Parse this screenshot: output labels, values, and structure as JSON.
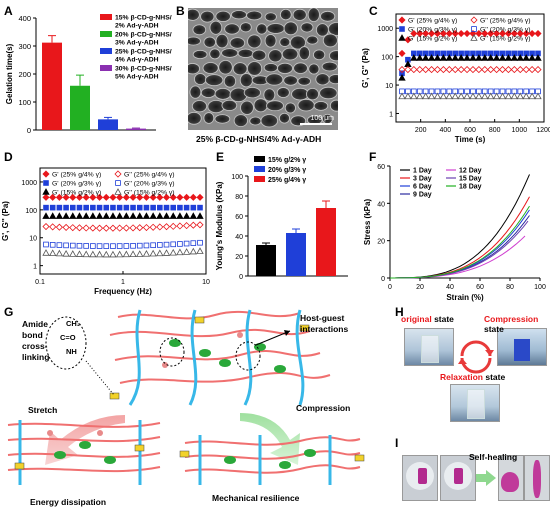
{
  "panels": {
    "A": "A",
    "B": "B",
    "C": "C",
    "D": "D",
    "E": "E",
    "F": "F",
    "G": "G",
    "H": "H",
    "I": "I"
  },
  "chart_data": [
    {
      "id": "A",
      "type": "bar",
      "ylabel": "Gelation time(s)",
      "ylim": [
        0,
        400
      ],
      "yticks": [
        "0",
        "100",
        "200",
        "300",
        "400"
      ],
      "categories": [
        "15% β-CD-g-NHS/ 2% Ad-γ-ADH",
        "20% β-CD-g-NHS/ 3% Ad-γ-ADH",
        "25% β-CD-g-NHS/ 4% Ad-γ-ADH",
        "30% β-CD-g-NHS/ 5% Ad-γ-ADH"
      ],
      "values": [
        312,
        158,
        38,
        5
      ],
      "errors": [
        25,
        38,
        7,
        2
      ],
      "colors": [
        "#e8171b",
        "#22b022",
        "#1f3fd8",
        "#8a2fb0"
      ]
    },
    {
      "id": "C",
      "type": "scatter",
      "ylabel": "G', G'' (Pa)",
      "xlabel": "Time (s)",
      "xlim": [
        0,
        1200
      ],
      "xticks": [
        "200",
        "400",
        "600",
        "800",
        "1000",
        "1200"
      ],
      "yticks": [
        "1",
        "10",
        "100",
        "1000"
      ],
      "yscale": "log",
      "series": [
        {
          "name": "G' (25% g/4% γ)",
          "value": 650,
          "color": "#e8171b",
          "marker": "diamond",
          "filled": true
        },
        {
          "name": "G' (20% g/3% γ)",
          "value": 130,
          "color": "#1f3fd8",
          "marker": "square",
          "filled": true
        },
        {
          "name": "G' (15% g/2% γ)",
          "value": 90,
          "color": "#000000",
          "marker": "triangle",
          "filled": true
        },
        {
          "name": "G'' (25% g/4% γ)",
          "value": 35,
          "color": "#e8171b",
          "marker": "diamond",
          "filled": false
        },
        {
          "name": "G'' (20% g/3% γ)",
          "value": 6,
          "color": "#1f3fd8",
          "marker": "square",
          "filled": false
        },
        {
          "name": "G'' (15% g/2% γ)",
          "value": 4,
          "color": "#555555",
          "marker": "triangle",
          "filled": false
        }
      ]
    },
    {
      "id": "D",
      "type": "scatter",
      "ylabel": "G', G'' (Pa)",
      "xlabel": "Frequency (Hz)",
      "xscale": "log",
      "xticks": [
        "0.1",
        "1",
        "10"
      ],
      "yticks": [
        "1",
        "10",
        "100",
        "1000"
      ],
      "yscale": "log",
      "series": [
        {
          "name": "G' (25% g/4% γ)",
          "value": 280,
          "color": "#e8171b",
          "marker": "diamond",
          "filled": true
        },
        {
          "name": "G' (20% g/3% γ)",
          "value": 120,
          "color": "#1f3fd8",
          "marker": "square",
          "filled": true
        },
        {
          "name": "G' (15% g/2% γ)",
          "value": 60,
          "color": "#000000",
          "marker": "triangle",
          "filled": true
        },
        {
          "name": "G'' (25% g/4% γ)",
          "value": 22,
          "color": "#e8171b",
          "marker": "diamond",
          "filled": false
        },
        {
          "name": "G'' (20% g/3% γ)",
          "value": 5,
          "color": "#1f3fd8",
          "marker": "square",
          "filled": false
        },
        {
          "name": "G'' (15% g/2% γ)",
          "value": 2.5,
          "color": "#555555",
          "marker": "triangle",
          "filled": false
        }
      ]
    },
    {
      "id": "E",
      "type": "bar",
      "ylabel": "Young's Modulus (KPa)",
      "ylim": [
        0,
        100
      ],
      "yticks": [
        "0",
        "20",
        "40",
        "60",
        "80",
        "100"
      ],
      "categories": [
        "15% g/2% γ",
        "20% g/3% γ",
        "25% g/4% γ"
      ],
      "values": [
        31,
        43,
        68
      ],
      "errors": [
        2,
        4,
        7
      ],
      "colors": [
        "#000000",
        "#1f3fd8",
        "#e8171b"
      ]
    },
    {
      "id": "F",
      "type": "line",
      "ylabel": "Stress (kPa)",
      "xlabel": "Strain (%)",
      "xlim": [
        0,
        100
      ],
      "ylim": [
        0,
        60
      ],
      "xticks": [
        "0",
        "20",
        "40",
        "60",
        "80",
        "100"
      ],
      "yticks": [
        "0",
        "20",
        "40",
        "60"
      ],
      "series": [
        {
          "name": "1 Day",
          "color": "#000000",
          "end": [
            93,
            55
          ]
        },
        {
          "name": "3 Day",
          "color": "#e8171b",
          "end": [
            93,
            43
          ]
        },
        {
          "name": "6 Day",
          "color": "#1f3fd8",
          "end": [
            93,
            36
          ]
        },
        {
          "name": "9 Day",
          "color": "#2a2aa0",
          "end": [
            93,
            33
          ]
        },
        {
          "name": "12 Day",
          "color": "#d040d0",
          "end": [
            90,
            22
          ]
        },
        {
          "name": "15 Day",
          "color": "#6b3fb0",
          "end": [
            92,
            30
          ]
        },
        {
          "name": "18 Day",
          "color": "#22b022",
          "end": [
            93,
            38
          ]
        }
      ]
    }
  ],
  "B": {
    "caption": "25% β-CD-g-NHS/4% Ad-γ-ADH",
    "scalebar": "100 μm"
  },
  "G": {
    "amide_label": "Amide bond cross-linking",
    "struct_top": "CH₂",
    "struct_mid": "C=O",
    "struct_bot": "NH",
    "host_guest": "Host-guest interactions",
    "stretch": "Stretch",
    "compression": "Compression",
    "energy": "Energy dissipation",
    "resilience": "Mechanical resilience"
  },
  "H": {
    "original_word": "original",
    "original_rest": " state",
    "compression_word": "Compression",
    "compression_rest": " state",
    "relaxation_word": "Relaxation",
    "relaxation_rest": " state"
  },
  "I": {
    "self_healing": "Self-healing"
  }
}
